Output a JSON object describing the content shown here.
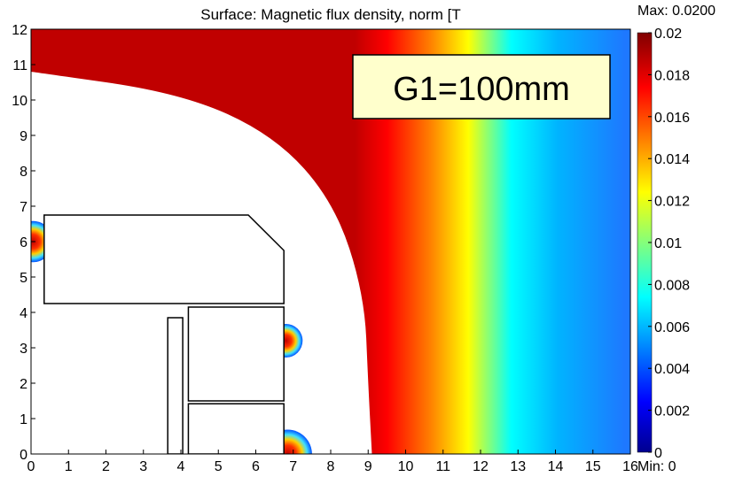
{
  "chart_data": {
    "type": "heatmap",
    "title": "Surface: Magnetic flux density, norm [T",
    "annotation": "G1=100mm",
    "xlim": [
      0,
      16
    ],
    "ylim": [
      0,
      12
    ],
    "x_ticks": [
      "0",
      "1",
      "2",
      "3",
      "4",
      "5",
      "6",
      "7",
      "8",
      "9",
      "10",
      "11",
      "12",
      "13",
      "14",
      "15",
      "16"
    ],
    "y_ticks": [
      "0",
      "1",
      "2",
      "3",
      "4",
      "5",
      "6",
      "7",
      "8",
      "9",
      "10",
      "11",
      "12"
    ],
    "colorbar": {
      "max_label": "Max: 0.0200",
      "min_label": "Min: 0",
      "range": [
        0,
        0.02
      ],
      "ticks": [
        "0",
        "0.002",
        "0.004",
        "0.006",
        "0.008",
        "0.01",
        "0.012",
        "0.014",
        "0.016",
        "0.018",
        "0.02"
      ],
      "colormap": [
        "#00008f",
        "#0000ff",
        "#00ffff",
        "#ffff00",
        "#ff0000",
        "#800000"
      ]
    },
    "field": {
      "saturated_boundary": [
        [
          0,
          10.8
        ],
        [
          4,
          10.2
        ],
        [
          6.5,
          9.0
        ],
        [
          8.1,
          7.1
        ],
        [
          8.9,
          4.5
        ],
        [
          9.0,
          2.0
        ],
        [
          9.1,
          0
        ]
      ],
      "max_value": 0.02,
      "min_value": 0
    },
    "geometry_outlines": [
      {
        "name": "pole-piece",
        "points": [
          [
            0.35,
            4.25
          ],
          [
            0.35,
            6.75
          ],
          [
            5.8,
            6.75
          ],
          [
            6.75,
            5.75
          ],
          [
            6.75,
            4.25
          ]
        ]
      },
      {
        "name": "thin-bar",
        "points": [
          [
            3.65,
            0
          ],
          [
            3.65,
            3.85
          ],
          [
            4.05,
            3.85
          ],
          [
            4.05,
            0
          ]
        ]
      },
      {
        "name": "upper-coil",
        "points": [
          [
            4.2,
            1.5
          ],
          [
            4.2,
            4.15
          ],
          [
            6.75,
            4.15
          ],
          [
            6.75,
            1.5
          ]
        ]
      },
      {
        "name": "lower-coil",
        "points": [
          [
            4.2,
            0
          ],
          [
            4.2,
            1.42
          ],
          [
            6.75,
            1.42
          ],
          [
            6.75,
            0
          ]
        ]
      }
    ],
    "hotspots": [
      {
        "name": "hotspot-left",
        "x": 0.05,
        "y": 6.0,
        "r": 0.55
      },
      {
        "name": "hotspot-mid",
        "x": 6.8,
        "y": 3.2,
        "r": 0.45
      },
      {
        "name": "hotspot-bottom",
        "x": 6.85,
        "y": 0.0,
        "r": 0.65
      }
    ]
  }
}
